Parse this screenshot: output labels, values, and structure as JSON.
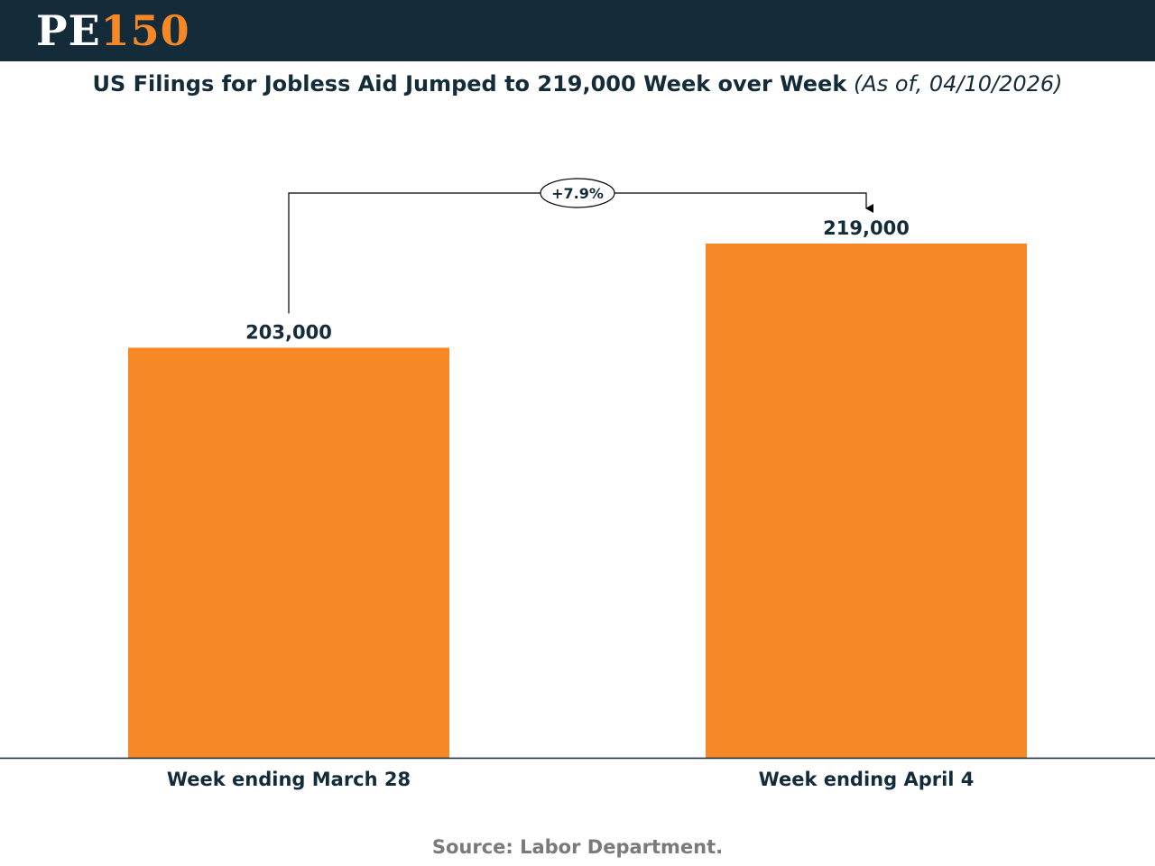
{
  "header": {
    "logo_letters": "PE",
    "logo_number": "150",
    "background_color": "#142b3a",
    "accent_color": "#f68826"
  },
  "title": {
    "main": "US Filings for Jobless Aid Jumped to 219,000 Week over Week",
    "subtitle": "(As of, 04/10/2026)"
  },
  "chart_data": {
    "type": "bar",
    "categories": [
      "Week ending March 28",
      "Week ending April 4"
    ],
    "values": [
      203000,
      219000
    ],
    "value_labels": [
      "203,000",
      "219,000"
    ],
    "bar_color": "#f68826",
    "annotation": {
      "text": "+7.9%",
      "from_category": 0,
      "to_category": 1
    },
    "title": "US Filings for Jobless Aid Jumped to 219,000 Week over Week",
    "xlabel": "",
    "ylabel": "",
    "grid": false,
    "legend": "none"
  },
  "source": "Source: Labor Department."
}
